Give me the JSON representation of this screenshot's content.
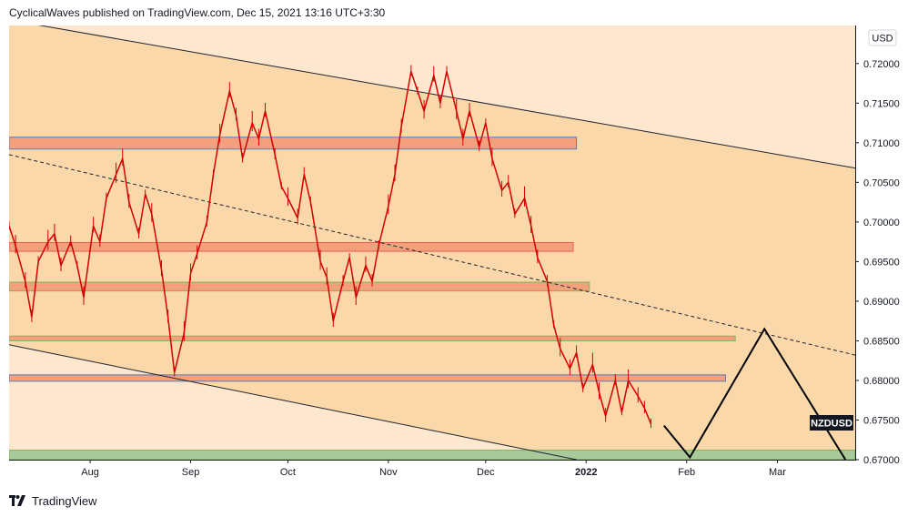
{
  "header": {
    "text": "CyclicalWaves published on TradingView.com, Dec 15, 2021 13:16 UTC+3:30"
  },
  "footer": {
    "brand": "TradingView",
    "logo_icon": "tradingview-logo-icon"
  },
  "colors": {
    "background": "#fbd8aa",
    "channel_outer": "#fde7cf",
    "zone_red": "#f4a07c",
    "zone_border_blue": "#5b7bb3",
    "zone_border_green": "#7fb45a",
    "zone_bottom_green": "#a8c99a",
    "candle": "#d40000",
    "projection": "#000000"
  },
  "chart_data": {
    "type": "line",
    "symbol": "NZDUSD",
    "currency": "USD",
    "x_labels": [
      {
        "label": "Aug",
        "date": "2021-08-01"
      },
      {
        "label": "Sep",
        "date": "2021-09-01"
      },
      {
        "label": "Oct",
        "date": "2021-10-01"
      },
      {
        "label": "Nov",
        "date": "2021-11-01"
      },
      {
        "label": "Dec",
        "date": "2021-12-01"
      },
      {
        "label": "2022",
        "date": "2022-01-01",
        "bold": true
      },
      {
        "label": "Feb",
        "date": "2022-02-01"
      },
      {
        "label": "Mar",
        "date": "2022-03-01"
      }
    ],
    "xlim": [
      "2021-07-07",
      "2022-03-25"
    ],
    "ylim": [
      0.67,
      0.7248
    ],
    "y_ticks": [
      "0.72000",
      "0.71500",
      "0.71000",
      "0.70500",
      "0.70000",
      "0.69500",
      "0.69000",
      "0.68500",
      "0.68000",
      "0.67500",
      "0.67000"
    ],
    "last_price_label": "NZDUSD",
    "series": [
      {
        "type": "price",
        "points": [
          [
            "2021-07-07",
            0.6995
          ],
          [
            "2021-07-09",
            0.697
          ],
          [
            "2021-07-12",
            0.6925
          ],
          [
            "2021-07-14",
            0.688
          ],
          [
            "2021-07-16",
            0.695
          ],
          [
            "2021-07-19",
            0.6975
          ],
          [
            "2021-07-21",
            0.6985
          ],
          [
            "2021-07-23",
            0.6945
          ],
          [
            "2021-07-26",
            0.6975
          ],
          [
            "2021-07-28",
            0.6945
          ],
          [
            "2021-07-30",
            0.6905
          ],
          [
            "2021-08-02",
            0.6995
          ],
          [
            "2021-08-04",
            0.6975
          ],
          [
            "2021-08-06",
            0.703
          ],
          [
            "2021-08-09",
            0.706
          ],
          [
            "2021-08-11",
            0.708
          ],
          [
            "2021-08-13",
            0.7025
          ],
          [
            "2021-08-16",
            0.6985
          ],
          [
            "2021-08-18",
            0.7035
          ],
          [
            "2021-08-20",
            0.701
          ],
          [
            "2021-08-23",
            0.694
          ],
          [
            "2021-08-25",
            0.688
          ],
          [
            "2021-08-27",
            0.681
          ],
          [
            "2021-08-30",
            0.686
          ],
          [
            "2021-09-01",
            0.6935
          ],
          [
            "2021-09-03",
            0.696
          ],
          [
            "2021-09-06",
            0.7
          ],
          [
            "2021-09-08",
            0.706
          ],
          [
            "2021-09-10",
            0.711
          ],
          [
            "2021-09-13",
            0.7165
          ],
          [
            "2021-09-15",
            0.7135
          ],
          [
            "2021-09-17",
            0.708
          ],
          [
            "2021-09-20",
            0.7125
          ],
          [
            "2021-09-22",
            0.7105
          ],
          [
            "2021-09-24",
            0.714
          ],
          [
            "2021-09-27",
            0.7085
          ],
          [
            "2021-09-29",
            0.7045
          ],
          [
            "2021-10-01",
            0.703
          ],
          [
            "2021-10-04",
            0.7005
          ],
          [
            "2021-10-06",
            0.706
          ],
          [
            "2021-10-08",
            0.7025
          ],
          [
            "2021-10-11",
            0.695
          ],
          [
            "2021-10-13",
            0.693
          ],
          [
            "2021-10-15",
            0.6875
          ],
          [
            "2021-10-18",
            0.6925
          ],
          [
            "2021-10-20",
            0.6955
          ],
          [
            "2021-10-22",
            0.6905
          ],
          [
            "2021-10-25",
            0.6945
          ],
          [
            "2021-10-27",
            0.6925
          ],
          [
            "2021-10-29",
            0.697
          ],
          [
            "2021-11-01",
            0.702
          ],
          [
            "2021-11-03",
            0.706
          ],
          [
            "2021-11-05",
            0.712
          ],
          [
            "2021-11-08",
            0.719
          ],
          [
            "2021-11-10",
            0.7165
          ],
          [
            "2021-11-12",
            0.714
          ],
          [
            "2021-11-15",
            0.7185
          ],
          [
            "2021-11-17",
            0.715
          ],
          [
            "2021-11-19",
            0.719
          ],
          [
            "2021-11-22",
            0.714
          ],
          [
            "2021-11-24",
            0.7105
          ],
          [
            "2021-11-26",
            0.714
          ],
          [
            "2021-11-29",
            0.7095
          ],
          [
            "2021-12-01",
            0.7125
          ],
          [
            "2021-12-03",
            0.708
          ],
          [
            "2021-12-06",
            0.704
          ],
          [
            "2021-12-08",
            0.705
          ],
          [
            "2021-12-10",
            0.701
          ],
          [
            "2021-12-13",
            0.703
          ],
          [
            "2021-12-15",
            0.6995
          ],
          [
            "2021-12-17",
            0.6955
          ],
          [
            "2021-12-20",
            0.6925
          ],
          [
            "2021-12-22",
            0.687
          ],
          [
            "2021-12-24",
            0.684
          ],
          [
            "2021-12-27",
            0.6815
          ],
          [
            "2021-12-29",
            0.6835
          ],
          [
            "2021-12-31",
            0.679
          ],
          [
            "2022-01-03",
            0.682
          ],
          [
            "2022-01-05",
            0.6785
          ],
          [
            "2022-01-07",
            0.6755
          ],
          [
            "2022-01-10",
            0.68
          ],
          [
            "2022-01-12",
            0.676
          ],
          [
            "2022-01-14",
            0.68
          ],
          [
            "2022-01-17",
            0.678
          ],
          [
            "2022-01-19",
            0.6765
          ],
          [
            "2022-01-21",
            0.6745
          ]
        ]
      },
      {
        "type": "projection",
        "points": [
          [
            "2022-01-25",
            0.6743
          ],
          [
            "2022-02-02",
            0.6703
          ],
          [
            "2022-02-25",
            0.6865
          ],
          [
            "2022-03-22",
            0.67
          ]
        ]
      },
      {
        "type": "channel_top",
        "points": [
          [
            "2021-07-07",
            0.7255
          ],
          [
            "2022-03-25",
            0.7068
          ]
        ]
      },
      {
        "type": "channel_middle",
        "points": [
          [
            "2021-07-07",
            0.7085
          ],
          [
            "2022-03-25",
            0.6832
          ]
        ]
      },
      {
        "type": "channel_bottom",
        "points": [
          [
            "2021-07-07",
            0.6845
          ],
          [
            "2021-12-29",
            0.67
          ]
        ]
      }
    ],
    "zones": [
      {
        "from": 0.7092,
        "to": 0.7107,
        "end": "2021-12-29",
        "border": "blue"
      },
      {
        "from": 0.6963,
        "to": 0.6974,
        "end": "2021-12-28",
        "border": "red"
      },
      {
        "from": 0.6913,
        "to": 0.6924,
        "end": "2022-01-02",
        "border": "green"
      },
      {
        "from": 0.685,
        "to": 0.6856,
        "end": "2022-02-16",
        "border": "green"
      },
      {
        "from": 0.6799,
        "to": 0.6807,
        "end": "2022-02-13",
        "border": "blue"
      },
      {
        "from": 0.67,
        "to": 0.6712,
        "end": "2022-03-25",
        "border": "green"
      }
    ],
    "grid": false,
    "legend": "none"
  }
}
